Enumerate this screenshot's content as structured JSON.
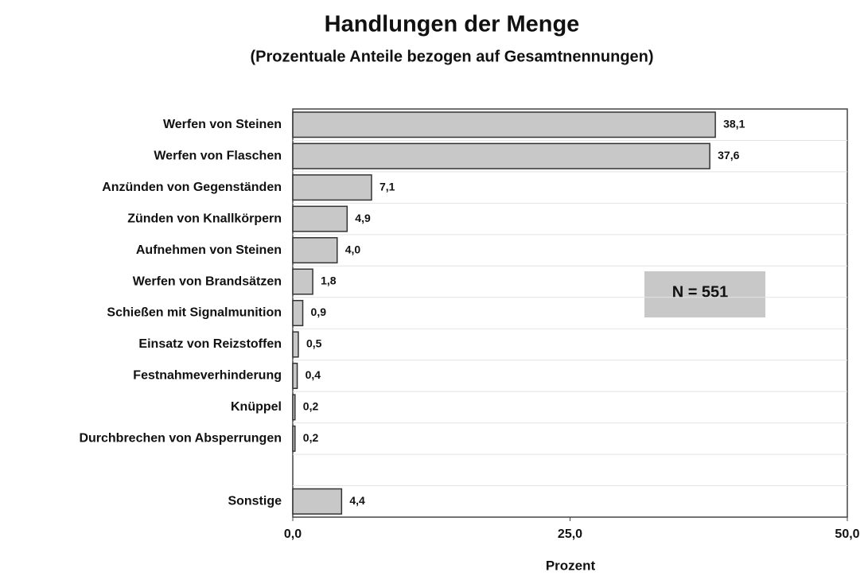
{
  "chart_data": {
    "type": "bar",
    "orientation": "horizontal",
    "title": "Handlungen der Menge",
    "subtitle": "(Prozentuale Anteile bezogen auf Gesamtnennungen)",
    "x_label": "Prozent",
    "annotation": "N = 551",
    "categories": [
      "Werfen von Steinen",
      "Werfen von Flaschen",
      "Anzünden von Gegenständen",
      "Zünden von Knallkörpern",
      "Aufnehmen von Steinen",
      "Werfen von Brandsätzen",
      "Schießen mit Signalmunition",
      "Einsatz von Reizstoffen",
      "Festnahmeverhinderung",
      "Knüppel",
      "Durchbrechen von Absperrungen",
      null,
      "Sonstige"
    ],
    "values": [
      38.1,
      37.6,
      7.1,
      4.9,
      4.0,
      1.8,
      0.9,
      0.5,
      0.4,
      0.2,
      0.2,
      null,
      4.4
    ],
    "value_labels": [
      "38,1",
      "37,6",
      "7,1",
      "4,9",
      "4,0",
      "1,8",
      "0,9",
      "0,5",
      "0,4",
      "0,2",
      "0,2",
      null,
      "4,4"
    ],
    "color": "#c8c8c8",
    "xlim": [
      0,
      50
    ],
    "xticks": [
      {
        "value": 0,
        "label": "0,0"
      },
      {
        "value": 25,
        "label": "25,0"
      },
      {
        "value": 50,
        "label": "50,0"
      }
    ],
    "grid": true
  }
}
